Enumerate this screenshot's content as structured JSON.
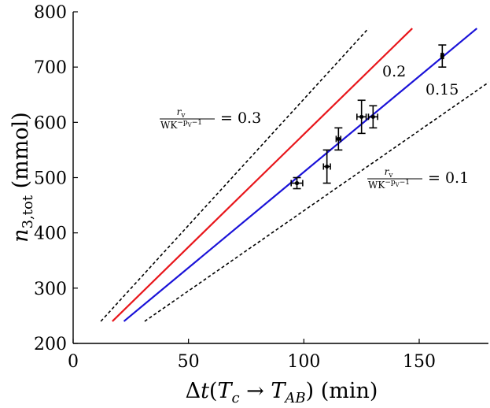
{
  "chart_data": {
    "type": "line",
    "xlabel": "Δt(T_c → T_AB) (min)",
    "ylabel": "n_3,tot (mmol)",
    "xlim": [
      0,
      180
    ],
    "ylim": [
      200,
      800
    ],
    "x_ticks": [
      0,
      50,
      100,
      150
    ],
    "y_ticks": [
      200,
      300,
      400,
      500,
      600,
      700,
      800
    ],
    "grid": false,
    "series": [
      {
        "name": "0.3",
        "style": "dashed",
        "color": "#000000",
        "x": [
          12,
          128
        ],
        "y": [
          240,
          770
        ]
      },
      {
        "name": "0.2",
        "style": "solid",
        "color": "#e8161b",
        "x": [
          17,
          147
        ],
        "y": [
          240,
          770
        ]
      },
      {
        "name": "0.15",
        "style": "solid",
        "color": "#1a12d8",
        "x": [
          22,
          175
        ],
        "y": [
          240,
          770
        ]
      },
      {
        "name": "0.1",
        "style": "dashed",
        "color": "#000000",
        "x": [
          31,
          181
        ],
        "y": [
          240,
          675
        ]
      }
    ],
    "points": [
      {
        "x": 97,
        "y": 490,
        "xerr": 2.5,
        "yerr": 10
      },
      {
        "x": 110,
        "y": 520,
        "xerr": 1.5,
        "yerr": 30
      },
      {
        "x": 115,
        "y": 570,
        "xerr": 1.0,
        "yerr": 20
      },
      {
        "x": 125,
        "y": 610,
        "xerr": 2.0,
        "yerr": 30
      },
      {
        "x": 130,
        "y": 610,
        "xerr": 2.0,
        "yerr": 20
      },
      {
        "x": 160,
        "y": 720,
        "xerr": 0.5,
        "yerr": 20
      }
    ],
    "annotations": {
      "label_0_2": "0.2",
      "label_0_15": "0.15",
      "ratio_num": "r",
      "ratio_num_sub": "v",
      "ratio_den": "WK",
      "ratio_den_exp": "−p",
      "ratio_den_exp_sub": "V",
      "ratio_den_exp_tail": "−1",
      "eq_0_3": "= 0.3",
      "eq_0_1": "= 0.1"
    }
  }
}
